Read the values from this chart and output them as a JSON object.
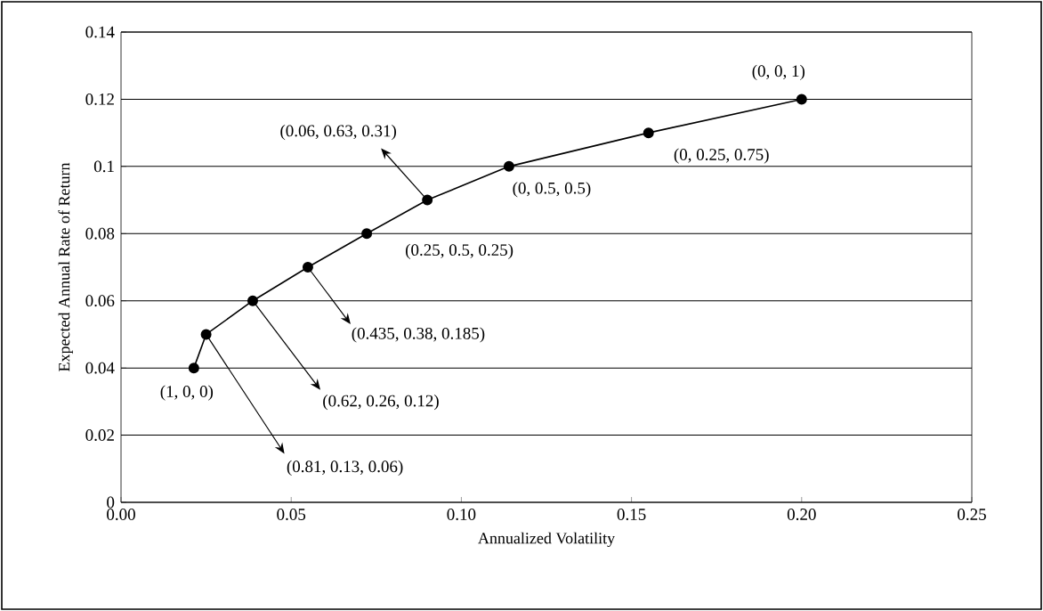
{
  "chart_data": {
    "type": "line",
    "xlabel": "Annualized Volatility",
    "ylabel": "Expected Annual Rate of Return",
    "x": [
      0.0214,
      0.025,
      0.0387,
      0.0549,
      0.0722,
      0.09,
      0.114,
      0.155,
      0.2
    ],
    "values": [
      0.04,
      0.05,
      0.06,
      0.07,
      0.08,
      0.09,
      0.1,
      0.11,
      0.12
    ],
    "color": "#000000",
    "marker": "circle",
    "line_style": "solid",
    "grid": "y",
    "xlim": [
      0,
      0.25
    ],
    "ylim": [
      0,
      0.14
    ],
    "xticks": [
      {
        "value": 0,
        "label": "0.00"
      },
      {
        "value": 0.05,
        "label": "0.05"
      },
      {
        "value": 0.1,
        "label": "0.10"
      },
      {
        "value": 0.15,
        "label": "0.15"
      },
      {
        "value": 0.2,
        "label": "0.20"
      },
      {
        "value": 0.25,
        "label": "0.25"
      }
    ],
    "yticks": [
      0,
      0.02,
      0.04,
      0.06,
      0.08,
      0.1,
      0.12,
      0.14
    ],
    "annotations": [
      {
        "text": "(1, 0, 0)",
        "x": 0.0214,
        "y": 0.04
      },
      {
        "text": "(0.81, 0.13, 0.06)",
        "x": 0.025,
        "y": 0.05
      },
      {
        "text": "(0.62, 0.26, 0.12)",
        "x": 0.0387,
        "y": 0.06
      },
      {
        "text": "(0.435, 0.38, 0.185)",
        "x": 0.0549,
        "y": 0.07
      },
      {
        "text": "(0.25, 0.5, 0.25)",
        "x": 0.0722,
        "y": 0.08
      },
      {
        "text": "(0.06, 0.63, 0.31)",
        "x": 0.09,
        "y": 0.09
      },
      {
        "text": "(0, 0.5, 0.5)",
        "x": 0.114,
        "y": 0.1
      },
      {
        "text": "(0, 0.25, 0.75)",
        "x": 0.155,
        "y": 0.11
      },
      {
        "text": "(0, 0, 1)",
        "x": 0.2,
        "y": 0.12
      }
    ]
  }
}
